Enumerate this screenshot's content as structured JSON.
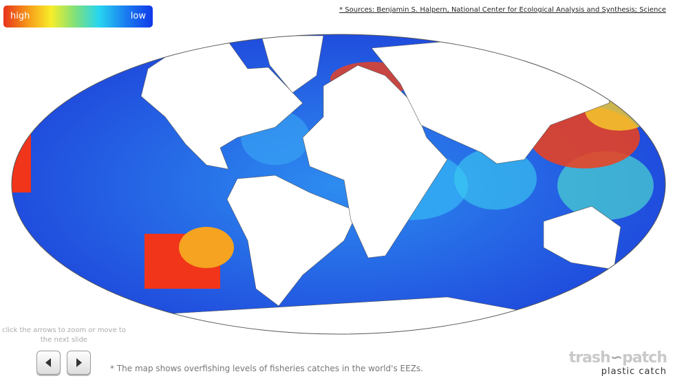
{
  "legend": {
    "high": "high",
    "low": "low"
  },
  "source": "* Sources: Benjamin S. Halpern, National Center for Ecological Analysis and Synthesis; Science",
  "instructions": "click the arrows to zoom or move to the next slide",
  "caption": "* The map shows overfishing levels of fisheries catches in the world's EEZs.",
  "logo": {
    "brand_left": "trash",
    "brand_right": "patch",
    "tagline": "plastic catch"
  }
}
